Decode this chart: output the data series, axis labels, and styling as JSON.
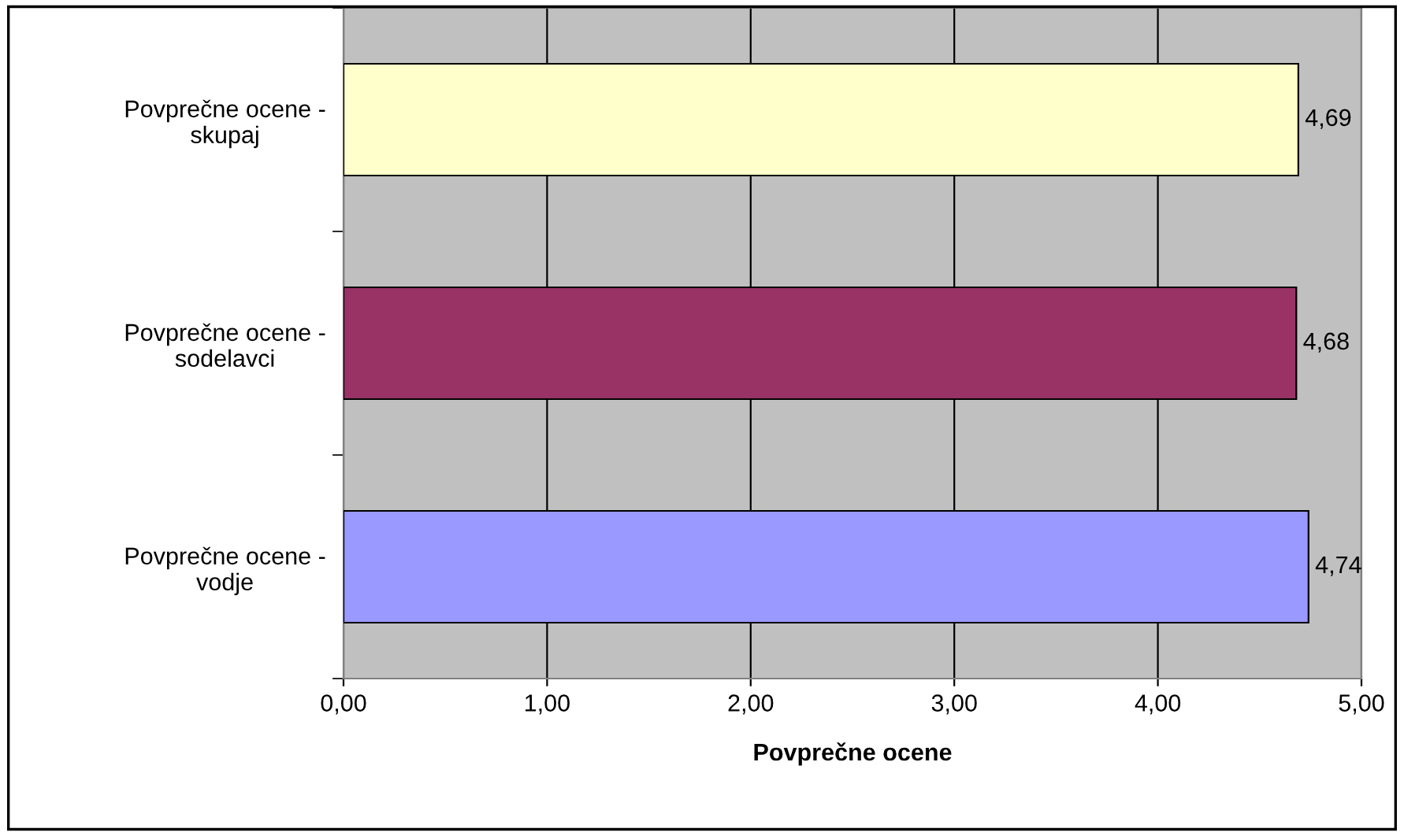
{
  "chart_data": {
    "type": "bar",
    "orientation": "horizontal",
    "xlabel": "Povprečne ocene",
    "categories": [
      "Povprečne ocene -\nskupaj",
      "Povprečne ocene -\nsodelavci",
      "Povprečne ocene -\nvodje"
    ],
    "values": [
      4.69,
      4.68,
      4.74
    ],
    "colors": [
      "#ffffcc",
      "#993366",
      "#9999ff"
    ],
    "value_labels": [
      "4,69",
      "4,68",
      "4,74"
    ],
    "xlim": [
      0,
      5
    ],
    "xticks": [
      {
        "value": 0,
        "label": "0,00"
      },
      {
        "value": 1,
        "label": "1,00"
      },
      {
        "value": 2,
        "label": "2,00"
      },
      {
        "value": 3,
        "label": "3,00"
      },
      {
        "value": 4,
        "label": "4,00"
      },
      {
        "value": 5,
        "label": "5,00"
      }
    ],
    "grid": "x",
    "legend": false
  }
}
